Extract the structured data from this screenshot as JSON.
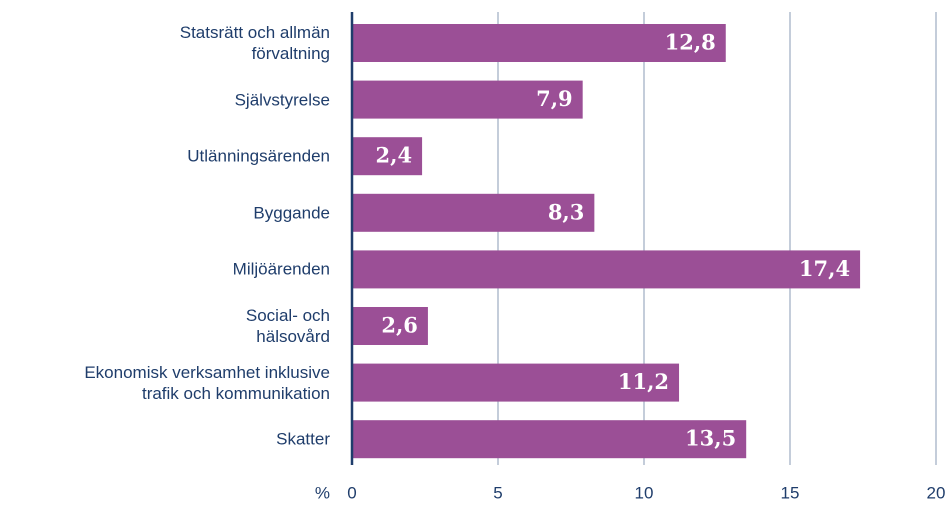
{
  "chart_data": {
    "type": "hbar",
    "categories": [
      "Statsrätt och allmän\nförvaltning",
      "Självstyrelse",
      "Utlänningsärenden",
      "Byggande",
      "Miljöärenden",
      "Social- och\nhälsovård",
      "Ekonomisk verksamhet inklusive\ntrafik och kommunikation",
      "Skatter"
    ],
    "values": [
      12.8,
      7.9,
      2.4,
      8.3,
      17.4,
      2.6,
      11.2,
      13.5
    ],
    "value_labels": [
      "12,8",
      "7,9",
      "2,4",
      "8,3",
      "17,4",
      "2,6",
      "11,2",
      "13,5"
    ],
    "color": "#9b4f96",
    "x_label": "%",
    "xlim": [
      0,
      20
    ],
    "xticks": [
      0,
      5,
      10,
      15,
      20
    ],
    "grid": true
  }
}
